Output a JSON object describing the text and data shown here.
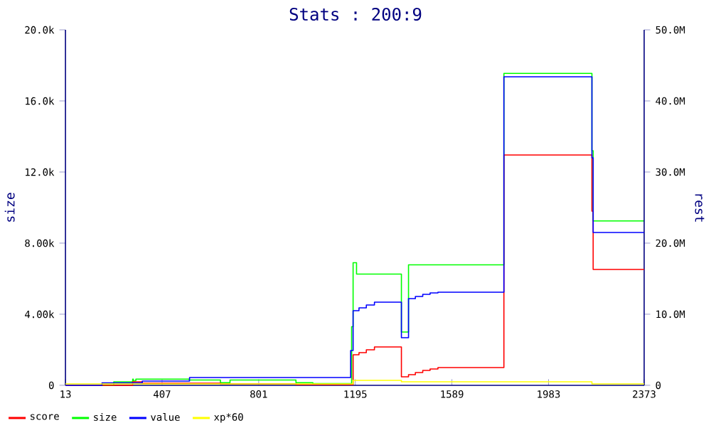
{
  "chart_data": {
    "type": "step",
    "title": "Stats : 200:9",
    "ylabel": "size",
    "y2label": "rest",
    "xlim": [
      13,
      2373
    ],
    "xticks": [
      13,
      407,
      801,
      1195,
      1589,
      1983,
      2373
    ],
    "ylim": [
      0,
      20000
    ],
    "yticks": [
      {
        "value": 0,
        "label": "0"
      },
      {
        "value": 4000,
        "label": "4.00k"
      },
      {
        "value": 8000,
        "label": "8.00k"
      },
      {
        "value": 12000,
        "label": "12.0k"
      },
      {
        "value": 16000,
        "label": "16.0k"
      },
      {
        "value": 20000,
        "label": "20.0k"
      }
    ],
    "y2lim": [
      0,
      50000000
    ],
    "y2ticks": [
      {
        "value": 0,
        "label": "0"
      },
      {
        "value": 10000000,
        "label": "10.0M"
      },
      {
        "value": 20000000,
        "label": "20.0M"
      },
      {
        "value": 30000000,
        "label": "30.0M"
      },
      {
        "value": 40000000,
        "label": "40.0M"
      },
      {
        "value": 50000000,
        "label": "50.0M"
      }
    ],
    "legend": "bottom",
    "series": [
      {
        "name": "score",
        "color": "#ff0000",
        "axis": "y2",
        "x": [
          13,
          287,
          326,
          645,
          953,
          1186,
          1210,
          1240,
          1273,
          1383,
          1412,
          1440,
          1470,
          1500,
          1532,
          1801,
          2160,
          2165,
          2373
        ],
        "values": [
          0,
          500000,
          300000,
          200000,
          100000,
          4300000,
          4600000,
          5000000,
          5400000,
          1200000,
          1500000,
          1800000,
          2100000,
          2300000,
          2500000,
          32400000,
          24500000,
          16300000,
          16300000
        ]
      },
      {
        "name": "size",
        "color": "#00ff00",
        "axis": "y",
        "x": [
          13,
          210,
          287,
          290,
          300,
          518,
          645,
          684,
          953,
          1022,
          1180,
          1186,
          1200,
          1383,
          1412,
          1801,
          2160,
          2165,
          2373
        ],
        "values": [
          0,
          200,
          350,
          250,
          350,
          300,
          150,
          300,
          150,
          100,
          3300,
          6900,
          6260,
          3000,
          6780,
          17550,
          13200,
          9250,
          9250
        ]
      },
      {
        "name": "value",
        "color": "#0000ff",
        "axis": "y2",
        "x": [
          13,
          162,
          326,
          519,
          1176,
          1186,
          1210,
          1240,
          1273,
          1383,
          1412,
          1440,
          1470,
          1500,
          1532,
          1801,
          2160,
          2165,
          2373
        ],
        "values": [
          0,
          330000,
          600000,
          1100000,
          4900000,
          10500000,
          10900000,
          11300000,
          11700000,
          6700000,
          12200000,
          12500000,
          12800000,
          13000000,
          13100000,
          43400000,
          32000000,
          21500000,
          21500000
        ]
      },
      {
        "name": "xp*60",
        "color": "#ffff00",
        "axis": "y2",
        "x": [
          13,
          1186,
          1383,
          2160,
          2373
        ],
        "values": [
          200000,
          700000,
          500000,
          200000,
          200000
        ]
      }
    ]
  }
}
